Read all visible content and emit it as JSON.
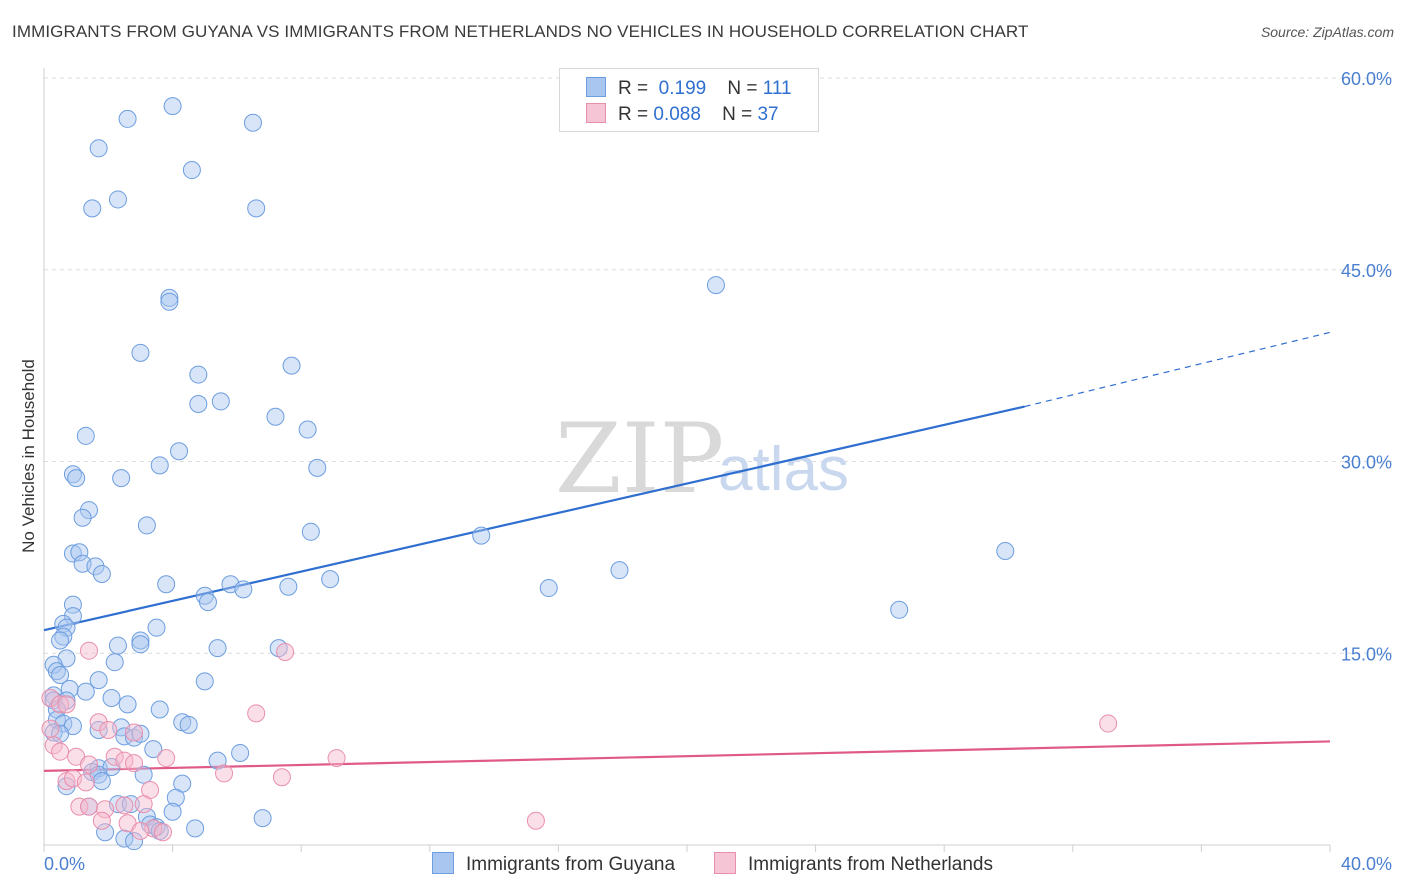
{
  "header": {
    "title": "IMMIGRANTS FROM GUYANA VS IMMIGRANTS FROM NETHERLANDS NO VEHICLES IN HOUSEHOLD CORRELATION CHART",
    "source": "Source: ZipAtlas.com"
  },
  "watermark": {
    "zip": "ZIP",
    "atlas": "atlas"
  },
  "legend": {
    "series": [
      {
        "r_label": "R =",
        "r_value": "0.199",
        "n_label": "N =",
        "n_value": "111"
      },
      {
        "r_label": "R =",
        "r_value": "0.088",
        "n_label": "N =",
        "n_value": "37"
      }
    ]
  },
  "colors": {
    "guyana_fill": "#a9c6f0",
    "guyana_stroke": "#6d9ee0",
    "guyana_line": "#2f6fd0",
    "netherlands_fill": "#f6b7cb",
    "netherlands_stroke": "#e98fac",
    "netherlands_line": "#e05a88",
    "grid": "#dcdcdc",
    "tick_text": "#4a7fd0"
  },
  "chart_data": {
    "type": "scatter",
    "title": "IMMIGRANTS FROM GUYANA VS IMMIGRANTS FROM NETHERLANDS NO VEHICLES IN HOUSEHOLD CORRELATION CHART",
    "xlabel": "",
    "ylabel": "No Vehicles in Household",
    "xlim": [
      0,
      40
    ],
    "ylim": [
      0,
      60
    ],
    "x_tick_labels": [
      "0.0%",
      "40.0%"
    ],
    "y_ticks": [
      15,
      30,
      45,
      60
    ],
    "y_tick_labels": [
      "15.0%",
      "30.0%",
      "45.0%",
      "60.0%"
    ],
    "grid": true,
    "legend_position": "top-center",
    "series": [
      {
        "name": "Immigrants from Guyana",
        "r": 0.199,
        "n": 111,
        "trend": {
          "x0": 0,
          "y0": 16.8,
          "x1": 30.5,
          "y1": 34.3,
          "dash_to_x": 40,
          "dash_to_y": 40.1
        },
        "points": [
          [
            4.0,
            57.8
          ],
          [
            2.6,
            56.8
          ],
          [
            6.5,
            56.5
          ],
          [
            1.7,
            54.5
          ],
          [
            4.6,
            52.8
          ],
          [
            2.3,
            50.5
          ],
          [
            1.5,
            49.8
          ],
          [
            6.6,
            49.8
          ],
          [
            20.9,
            43.8
          ],
          [
            3.9,
            42.8
          ],
          [
            3.9,
            42.5
          ],
          [
            3.0,
            38.5
          ],
          [
            7.7,
            37.5
          ],
          [
            4.8,
            36.8
          ],
          [
            4.8,
            34.5
          ],
          [
            5.5,
            34.7
          ],
          [
            7.2,
            33.5
          ],
          [
            8.2,
            32.5
          ],
          [
            1.3,
            32.0
          ],
          [
            4.2,
            30.8
          ],
          [
            3.6,
            29.7
          ],
          [
            8.5,
            29.5
          ],
          [
            0.9,
            29.0
          ],
          [
            1.0,
            28.7
          ],
          [
            2.4,
            28.7
          ],
          [
            1.4,
            26.2
          ],
          [
            1.2,
            25.6
          ],
          [
            3.2,
            25.0
          ],
          [
            8.3,
            24.5
          ],
          [
            13.6,
            24.2
          ],
          [
            29.9,
            23.0
          ],
          [
            0.9,
            22.8
          ],
          [
            1.1,
            22.9
          ],
          [
            1.2,
            22.0
          ],
          [
            1.6,
            21.8
          ],
          [
            1.8,
            21.2
          ],
          [
            8.9,
            20.8
          ],
          [
            3.8,
            20.4
          ],
          [
            5.8,
            20.4
          ],
          [
            7.6,
            20.2
          ],
          [
            6.2,
            20.0
          ],
          [
            15.7,
            20.1
          ],
          [
            17.9,
            21.5
          ],
          [
            5.0,
            19.5
          ],
          [
            5.1,
            19.0
          ],
          [
            0.9,
            18.8
          ],
          [
            26.6,
            18.4
          ],
          [
            0.9,
            17.9
          ],
          [
            0.6,
            17.3
          ],
          [
            0.7,
            17.0
          ],
          [
            3.5,
            17.0
          ],
          [
            0.6,
            16.3
          ],
          [
            0.5,
            16.0
          ],
          [
            3.0,
            16.0
          ],
          [
            2.3,
            15.6
          ],
          [
            3.0,
            15.7
          ],
          [
            5.4,
            15.4
          ],
          [
            7.3,
            15.4
          ],
          [
            0.7,
            14.6
          ],
          [
            0.3,
            14.1
          ],
          [
            2.2,
            14.3
          ],
          [
            0.4,
            13.6
          ],
          [
            0.5,
            13.3
          ],
          [
            1.7,
            12.9
          ],
          [
            5.0,
            12.8
          ],
          [
            0.8,
            12.2
          ],
          [
            1.3,
            12.0
          ],
          [
            0.3,
            11.7
          ],
          [
            2.1,
            11.5
          ],
          [
            0.3,
            11.3
          ],
          [
            0.7,
            11.3
          ],
          [
            2.6,
            11.0
          ],
          [
            0.4,
            10.6
          ],
          [
            3.6,
            10.6
          ],
          [
            0.4,
            9.8
          ],
          [
            0.6,
            9.5
          ],
          [
            4.3,
            9.6
          ],
          [
            4.5,
            9.4
          ],
          [
            0.9,
            9.3
          ],
          [
            2.4,
            9.2
          ],
          [
            0.3,
            8.8
          ],
          [
            0.5,
            8.7
          ],
          [
            1.7,
            9.0
          ],
          [
            2.5,
            8.5
          ],
          [
            2.8,
            8.4
          ],
          [
            3.0,
            8.7
          ],
          [
            3.4,
            7.5
          ],
          [
            6.1,
            7.2
          ],
          [
            5.4,
            6.6
          ],
          [
            1.7,
            6.0
          ],
          [
            2.1,
            6.1
          ],
          [
            1.5,
            5.7
          ],
          [
            1.7,
            5.5
          ],
          [
            3.1,
            5.5
          ],
          [
            1.8,
            5.0
          ],
          [
            4.3,
            4.8
          ],
          [
            0.7,
            4.6
          ],
          [
            4.1,
            3.7
          ],
          [
            1.4,
            3.0
          ],
          [
            2.3,
            3.2
          ],
          [
            2.7,
            3.2
          ],
          [
            4.0,
            2.6
          ],
          [
            6.8,
            2.1
          ],
          [
            3.2,
            2.2
          ],
          [
            3.3,
            1.6
          ],
          [
            3.5,
            1.4
          ],
          [
            4.7,
            1.3
          ],
          [
            3.6,
            1.1
          ],
          [
            1.9,
            1.0
          ],
          [
            2.5,
            0.5
          ],
          [
            2.8,
            0.3
          ]
        ]
      },
      {
        "name": "Immigrants from Netherlands",
        "r": 0.088,
        "n": 37,
        "trend": {
          "x0": 0,
          "y0": 5.8,
          "x1": 40,
          "y1": 8.1
        },
        "points": [
          [
            1.4,
            15.2
          ],
          [
            7.5,
            15.1
          ],
          [
            0.2,
            11.5
          ],
          [
            0.5,
            11.0
          ],
          [
            0.7,
            11.0
          ],
          [
            6.6,
            10.3
          ],
          [
            33.1,
            9.5
          ],
          [
            1.7,
            9.6
          ],
          [
            0.2,
            9.1
          ],
          [
            2.0,
            9.0
          ],
          [
            2.8,
            8.8
          ],
          [
            0.3,
            7.8
          ],
          [
            0.5,
            7.3
          ],
          [
            1.0,
            6.9
          ],
          [
            2.2,
            6.9
          ],
          [
            2.5,
            6.6
          ],
          [
            3.8,
            6.8
          ],
          [
            9.1,
            6.8
          ],
          [
            1.4,
            6.3
          ],
          [
            2.8,
            6.4
          ],
          [
            5.6,
            5.6
          ],
          [
            7.4,
            5.3
          ],
          [
            0.7,
            5.0
          ],
          [
            0.9,
            5.2
          ],
          [
            1.3,
            4.9
          ],
          [
            3.3,
            4.3
          ],
          [
            1.1,
            3.0
          ],
          [
            1.4,
            3.0
          ],
          [
            1.9,
            2.8
          ],
          [
            2.5,
            3.1
          ],
          [
            3.1,
            3.2
          ],
          [
            1.8,
            1.9
          ],
          [
            2.6,
            1.7
          ],
          [
            3.4,
            1.3
          ],
          [
            15.3,
            1.9
          ],
          [
            3.0,
            1.1
          ],
          [
            3.7,
            1.0
          ]
        ]
      }
    ]
  },
  "bottom_legend": {
    "items": [
      {
        "label": "Immigrants from Guyana"
      },
      {
        "label": "Immigrants from Netherlands"
      }
    ]
  }
}
